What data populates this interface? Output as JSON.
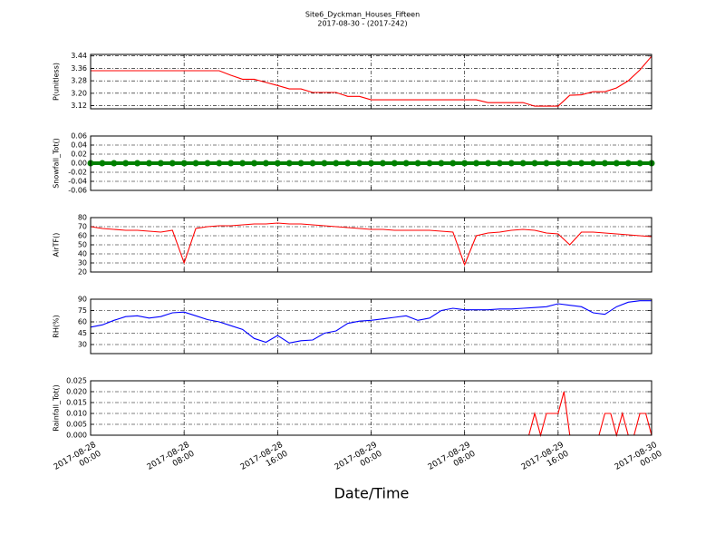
{
  "title": "Site6_Dyckman_Houses_Fifteen",
  "subtitle": "2017-08-30 - (2017-242)",
  "xlabel": "Date/Time",
  "xlim": [
    "2017-08-28 00:00",
    "2017-08-30 00:00"
  ],
  "xticks": [
    {
      "value": "2017-08-28 00:00",
      "label": "2017-08-28\n00:00"
    },
    {
      "value": "2017-08-28 08:00",
      "label": "2017-08-28\n08:00"
    },
    {
      "value": "2017-08-28 16:00",
      "label": "2017-08-28\n16:00"
    },
    {
      "value": "2017-08-29 00:00",
      "label": "2017-08-29\n00:00"
    },
    {
      "value": "2017-08-29 08:00",
      "label": "2017-08-29\n08:00"
    },
    {
      "value": "2017-08-29 16:00",
      "label": "2017-08-29\n16:00"
    },
    {
      "value": "2017-08-30 00:00",
      "label": "2017-08-30\n00:00"
    }
  ],
  "grid": true,
  "chart_data": [
    {
      "type": "line",
      "ylabel": "P(unitless)",
      "color": "#ff0000",
      "ylim": [
        3.1,
        3.45
      ],
      "yticks": [
        3.12,
        {
          "value": 3.2,
          "label": "3.20"
        },
        3.28,
        3.36,
        3.44
      ],
      "x": [
        "2017-08-28 00:00",
        "2017-08-28 01:00",
        "2017-08-28 02:00",
        "2017-08-28 03:00",
        "2017-08-28 04:00",
        "2017-08-28 05:00",
        "2017-08-28 06:00",
        "2017-08-28 07:00",
        "2017-08-28 08:00",
        "2017-08-28 09:00",
        "2017-08-28 10:00",
        "2017-08-28 11:00",
        "2017-08-28 12:00",
        "2017-08-28 13:00",
        "2017-08-28 14:00",
        "2017-08-28 15:00",
        "2017-08-28 16:00",
        "2017-08-28 17:00",
        "2017-08-28 18:00",
        "2017-08-28 19:00",
        "2017-08-28 20:00",
        "2017-08-28 21:00",
        "2017-08-28 22:00",
        "2017-08-28 23:00",
        "2017-08-29 00:00",
        "2017-08-29 01:00",
        "2017-08-29 02:00",
        "2017-08-29 03:00",
        "2017-08-29 04:00",
        "2017-08-29 05:00",
        "2017-08-29 06:00",
        "2017-08-29 07:00",
        "2017-08-29 08:00",
        "2017-08-29 09:00",
        "2017-08-29 10:00",
        "2017-08-29 11:00",
        "2017-08-29 12:00",
        "2017-08-29 13:00",
        "2017-08-29 14:00",
        "2017-08-29 15:00",
        "2017-08-29 16:00",
        "2017-08-29 17:00",
        "2017-08-29 18:00",
        "2017-08-29 19:00",
        "2017-08-29 20:00",
        "2017-08-29 21:00",
        "2017-08-29 22:00",
        "2017-08-29 23:00",
        "2017-08-30 00:00"
      ],
      "values": [
        3.345,
        3.345,
        3.345,
        3.345,
        3.345,
        3.345,
        3.345,
        3.345,
        3.345,
        3.345,
        3.345,
        3.345,
        3.316,
        3.29,
        3.29,
        3.27,
        3.25,
        3.228,
        3.228,
        3.205,
        3.205,
        3.205,
        3.18,
        3.18,
        3.158,
        3.158,
        3.158,
        3.158,
        3.158,
        3.158,
        3.158,
        3.158,
        3.158,
        3.158,
        3.14,
        3.14,
        3.14,
        3.14,
        3.117,
        3.117,
        3.117,
        3.187,
        3.19,
        3.21,
        3.21,
        3.234,
        3.28,
        3.35,
        3.438
      ]
    },
    {
      "type": "line",
      "ylabel": "Snowfall_Tot()",
      "color": "#008000",
      "marker": true,
      "ylim": [
        -0.06,
        0.06
      ],
      "yticks": [
        -0.06,
        -0.04,
        -0.02,
        {
          "value": 0,
          "label": "0.00"
        },
        0.02,
        0.04,
        0.06
      ],
      "x": [
        "2017-08-28 00:00",
        "2017-08-28 01:00",
        "2017-08-28 02:00",
        "2017-08-28 03:00",
        "2017-08-28 04:00",
        "2017-08-28 05:00",
        "2017-08-28 06:00",
        "2017-08-28 07:00",
        "2017-08-28 08:00",
        "2017-08-28 09:00",
        "2017-08-28 10:00",
        "2017-08-28 11:00",
        "2017-08-28 12:00",
        "2017-08-28 13:00",
        "2017-08-28 14:00",
        "2017-08-28 15:00",
        "2017-08-28 16:00",
        "2017-08-28 17:00",
        "2017-08-28 18:00",
        "2017-08-28 19:00",
        "2017-08-28 20:00",
        "2017-08-28 21:00",
        "2017-08-28 22:00",
        "2017-08-28 23:00",
        "2017-08-29 00:00",
        "2017-08-29 01:00",
        "2017-08-29 02:00",
        "2017-08-29 03:00",
        "2017-08-29 04:00",
        "2017-08-29 05:00",
        "2017-08-29 06:00",
        "2017-08-29 07:00",
        "2017-08-29 08:00",
        "2017-08-29 09:00",
        "2017-08-29 10:00",
        "2017-08-29 11:00",
        "2017-08-29 12:00",
        "2017-08-29 13:00",
        "2017-08-29 14:00",
        "2017-08-29 15:00",
        "2017-08-29 16:00",
        "2017-08-29 17:00",
        "2017-08-29 18:00",
        "2017-08-29 19:00",
        "2017-08-29 20:00",
        "2017-08-29 21:00",
        "2017-08-29 22:00",
        "2017-08-29 23:00",
        "2017-08-30 00:00"
      ],
      "values": [
        0,
        0,
        0,
        0,
        0,
        0,
        0,
        0,
        0,
        0,
        0,
        0,
        0,
        0,
        0,
        0,
        0,
        0,
        0,
        0,
        0,
        0,
        0,
        0,
        0,
        0,
        0,
        0,
        0,
        0,
        0,
        0,
        0,
        0,
        0,
        0,
        0,
        0,
        0,
        0,
        0,
        0,
        0,
        0,
        0,
        0,
        0,
        0,
        0
      ]
    },
    {
      "type": "line",
      "ylabel": "AirTF()",
      "color": "#ff0000",
      "ylim": [
        20,
        80
      ],
      "yticks": [
        20,
        30,
        40,
        50,
        60,
        70,
        80
      ],
      "x": [
        "2017-08-28 00:00",
        "2017-08-28 01:00",
        "2017-08-28 02:00",
        "2017-08-28 03:00",
        "2017-08-28 04:00",
        "2017-08-28 05:00",
        "2017-08-28 06:00",
        "2017-08-28 07:00",
        "2017-08-28 08:00",
        "2017-08-28 09:00",
        "2017-08-28 10:00",
        "2017-08-28 11:00",
        "2017-08-28 12:00",
        "2017-08-28 13:00",
        "2017-08-28 14:00",
        "2017-08-28 15:00",
        "2017-08-28 16:00",
        "2017-08-28 17:00",
        "2017-08-28 18:00",
        "2017-08-28 19:00",
        "2017-08-28 20:00",
        "2017-08-28 21:00",
        "2017-08-28 22:00",
        "2017-08-28 23:00",
        "2017-08-29 00:00",
        "2017-08-29 01:00",
        "2017-08-29 02:00",
        "2017-08-29 03:00",
        "2017-08-29 04:00",
        "2017-08-29 05:00",
        "2017-08-29 06:00",
        "2017-08-29 07:00",
        "2017-08-29 08:00",
        "2017-08-29 09:00",
        "2017-08-29 10:00",
        "2017-08-29 11:00",
        "2017-08-29 12:00",
        "2017-08-29 13:00",
        "2017-08-29 14:00",
        "2017-08-29 15:00",
        "2017-08-29 16:00",
        "2017-08-29 17:00",
        "2017-08-29 18:00",
        "2017-08-29 19:00",
        "2017-08-29 20:00",
        "2017-08-29 21:00",
        "2017-08-29 22:00",
        "2017-08-29 23:00",
        "2017-08-30 00:00"
      ],
      "values": [
        70,
        68,
        67,
        66,
        66,
        65,
        64,
        66,
        30,
        68,
        70,
        71,
        71,
        72,
        73,
        73,
        74,
        73,
        73,
        72,
        71,
        70,
        69,
        68,
        67,
        67,
        66,
        66,
        66,
        66,
        65,
        64,
        28,
        60,
        63,
        64,
        66,
        67,
        66,
        63,
        62,
        50,
        64,
        64,
        63,
        62,
        61,
        60,
        59
      ]
    },
    {
      "type": "line",
      "ylabel": "RH(%)",
      "color": "#0000ff",
      "ylim": [
        18,
        90
      ],
      "yticks": [
        30,
        45,
        60,
        75,
        90
      ],
      "x": [
        "2017-08-28 00:00",
        "2017-08-28 01:00",
        "2017-08-28 02:00",
        "2017-08-28 03:00",
        "2017-08-28 04:00",
        "2017-08-28 05:00",
        "2017-08-28 06:00",
        "2017-08-28 07:00",
        "2017-08-28 08:00",
        "2017-08-28 09:00",
        "2017-08-28 10:00",
        "2017-08-28 11:00",
        "2017-08-28 12:00",
        "2017-08-28 13:00",
        "2017-08-28 14:00",
        "2017-08-28 15:00",
        "2017-08-28 16:00",
        "2017-08-28 17:00",
        "2017-08-28 18:00",
        "2017-08-28 19:00",
        "2017-08-28 20:00",
        "2017-08-28 21:00",
        "2017-08-28 22:00",
        "2017-08-28 23:00",
        "2017-08-29 00:00",
        "2017-08-29 01:00",
        "2017-08-29 02:00",
        "2017-08-29 03:00",
        "2017-08-29 04:00",
        "2017-08-29 05:00",
        "2017-08-29 06:00",
        "2017-08-29 07:00",
        "2017-08-29 08:00",
        "2017-08-29 09:00",
        "2017-08-29 10:00",
        "2017-08-29 11:00",
        "2017-08-29 12:00",
        "2017-08-29 13:00",
        "2017-08-29 14:00",
        "2017-08-29 15:00",
        "2017-08-29 16:00",
        "2017-08-29 17:00",
        "2017-08-29 18:00",
        "2017-08-29 19:00",
        "2017-08-29 20:00",
        "2017-08-29 21:00",
        "2017-08-29 22:00",
        "2017-08-29 23:00",
        "2017-08-30 00:00"
      ],
      "values": [
        53,
        56,
        62,
        67,
        68,
        65,
        67,
        72,
        73,
        68,
        63,
        60,
        55,
        50,
        38,
        33,
        42,
        32,
        35,
        36,
        45,
        48,
        58,
        61,
        62,
        64,
        66,
        68,
        62,
        65,
        75,
        78,
        76,
        76,
        76,
        77,
        77,
        78,
        79,
        80,
        84,
        82,
        80,
        72,
        70,
        80,
        86,
        88,
        88
      ]
    },
    {
      "type": "line",
      "ylabel": "Rainfall_Tot()",
      "color": "#ff0000",
      "ylim": [
        0,
        0.025
      ],
      "yticks": [
        {
          "value": 0,
          "label": "0.000"
        },
        0.005,
        {
          "value": 0.01,
          "label": "0.010"
        },
        0.015,
        {
          "value": 0.02,
          "label": "0.020"
        },
        0.025
      ],
      "x": [
        "2017-08-28 00:00",
        "2017-08-28 01:00",
        "2017-08-28 02:00",
        "2017-08-28 03:00",
        "2017-08-28 04:00",
        "2017-08-28 05:00",
        "2017-08-28 06:00",
        "2017-08-28 07:00",
        "2017-08-28 08:00",
        "2017-08-28 09:00",
        "2017-08-28 10:00",
        "2017-08-28 11:00",
        "2017-08-28 12:00",
        "2017-08-28 13:00",
        "2017-08-28 14:00",
        "2017-08-28 15:00",
        "2017-08-28 16:00",
        "2017-08-28 17:00",
        "2017-08-28 18:00",
        "2017-08-28 19:00",
        "2017-08-28 20:00",
        "2017-08-28 21:00",
        "2017-08-28 22:00",
        "2017-08-28 23:00",
        "2017-08-29 00:00",
        "2017-08-29 01:00",
        "2017-08-29 02:00",
        "2017-08-29 03:00",
        "2017-08-29 04:00",
        "2017-08-29 05:00",
        "2017-08-29 06:00",
        "2017-08-29 07:00",
        "2017-08-29 08:00",
        "2017-08-29 09:00",
        "2017-08-29 10:00",
        "2017-08-29 11:00",
        "2017-08-29 12:00",
        "2017-08-29 13:00",
        "2017-08-29 13:30",
        "2017-08-29 14:00",
        "2017-08-29 14:30",
        "2017-08-29 15:00",
        "2017-08-29 15:30",
        "2017-08-29 16:00",
        "2017-08-29 16:30",
        "2017-08-29 17:00",
        "2017-08-29 17:30",
        "2017-08-29 18:00",
        "2017-08-29 18:30",
        "2017-08-29 19:00",
        "2017-08-29 19:30",
        "2017-08-29 20:00",
        "2017-08-29 20:30",
        "2017-08-29 21:00",
        "2017-08-29 21:30",
        "2017-08-29 22:00",
        "2017-08-29 22:30",
        "2017-08-29 23:00",
        "2017-08-29 23:30",
        "2017-08-30 00:00"
      ],
      "values": [
        0,
        0,
        0,
        0,
        0,
        0,
        0,
        0,
        0,
        0,
        0,
        0,
        0,
        0,
        0,
        0,
        0,
        0,
        0,
        0,
        0,
        0,
        0,
        0,
        0,
        0,
        0,
        0,
        0,
        0,
        0,
        0,
        0,
        0,
        0,
        0,
        0,
        0,
        0,
        0.01,
        0,
        0.01,
        0.01,
        0.01,
        0.02,
        0,
        0,
        0,
        0,
        0,
        0,
        0.01,
        0.01,
        0,
        0.01,
        0,
        0,
        0.01,
        0.01,
        0
      ]
    }
  ]
}
